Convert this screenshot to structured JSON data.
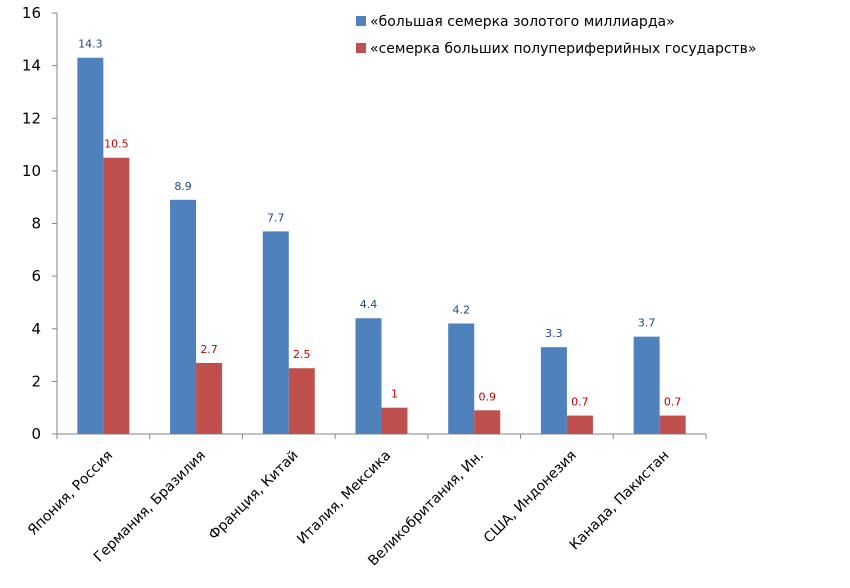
{
  "chart_data": {
    "type": "bar",
    "categories": [
      "Япония, Россия",
      "Германия, Бразилия",
      "Франция, Китай",
      "Италия, Мексика",
      "Великобритания, Ин.",
      "США, Индонезия",
      "Канада, Пакистан"
    ],
    "series": [
      {
        "name": "«большая семерка золотого миллиарда»",
        "values": [
          14.3,
          8.9,
          7.7,
          4.4,
          4.2,
          3.3,
          3.7
        ],
        "labels": [
          "14.3",
          "8.9",
          "7.7",
          "4.4",
          "4.2",
          "3.3",
          "3.7"
        ],
        "color": "#4f81bd",
        "label_color": "#1f497d"
      },
      {
        "name": "«семерка больших полупериферийных государств»",
        "values": [
          10.5,
          2.7,
          2.5,
          1,
          0.9,
          0.7,
          0.7
        ],
        "labels": [
          "10.5",
          "2.7",
          "2.5",
          "1",
          "0.9",
          "0.7",
          "0.7"
        ],
        "color": "#c0504d",
        "label_color": "#c00000"
      }
    ],
    "y_ticks": [
      "0",
      "2",
      "4",
      "6",
      "8",
      "10",
      "12",
      "14",
      "16"
    ],
    "ylim": [
      0,
      16
    ],
    "grid": false,
    "legend_position": "top-right",
    "title": "",
    "xlabel": "",
    "ylabel": ""
  }
}
